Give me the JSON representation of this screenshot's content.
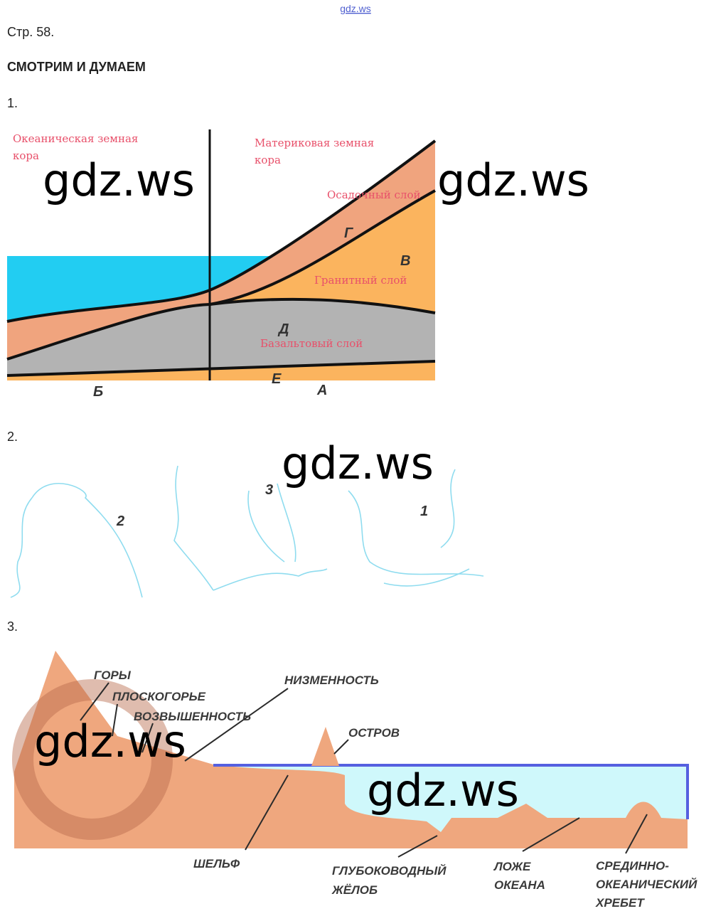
{
  "header": {
    "site": "gdz.ws",
    "page": "Стр. 58.",
    "section": "СМОТРИМ И ДУМАЕМ"
  },
  "watermark": "gdz.ws",
  "task1": {
    "number": "1.",
    "oceanic_crust": [
      "Океаническая земная",
      "кора"
    ],
    "continental_crust": [
      "Материковая земная",
      "кора"
    ],
    "sedimentary": "Осадочный слой",
    "granite": "Гранитный слой",
    "basalt": "Базальтовый слой",
    "letters": {
      "g": "Г",
      "v": "В",
      "d": "Д",
      "e": "Е",
      "b": "Б",
      "a": "А"
    }
  },
  "task2": {
    "number": "2.",
    "labels": [
      "2",
      "3",
      "1"
    ]
  },
  "task3": {
    "number": "3.",
    "mountains": "ГОРЫ",
    "plateau": "ПЛОСКОГОРЬЕ",
    "upland": "ВОЗВЫШЕННОСТЬ",
    "lowland": "НИЗМЕННОСТЬ",
    "island": "ОСТРОВ",
    "shelf": "ШЕЛЬФ",
    "trench": [
      "ГЛУБОКОВОДНЫЙ",
      "ЖЁЛОБ"
    ],
    "ocean_floor": [
      "ЛОЖЕ",
      "ОКЕАНА"
    ],
    "ridge": [
      "СРЕДИННО-",
      "ОКЕАНИЧЕСКИЙ",
      "ХРЕБЕТ"
    ]
  }
}
